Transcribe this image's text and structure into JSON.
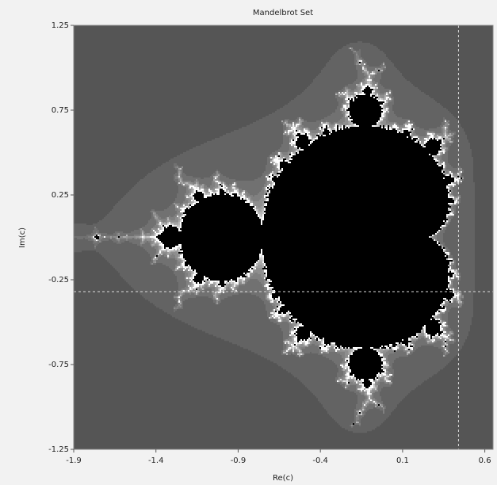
{
  "chart_data": {
    "type": "fractal",
    "title": "Mandelbrot Set",
    "x_label": "Re(c)",
    "y_label": "Im(c)",
    "xlim": [
      -1.9,
      0.65
    ],
    "ylim": [
      -1.25,
      1.25
    ],
    "xticks": [
      -1.9,
      -1.4,
      -0.9,
      -0.4,
      0.1,
      0.6
    ],
    "yticks": [
      1.25,
      0.75,
      0.25,
      -0.25,
      -0.75,
      -1.25
    ],
    "crosshair": {
      "x": 0.44,
      "y": -0.32
    },
    "background_color": "#555555",
    "set_color": "#000000",
    "crosshair_color": "#dddddd"
  }
}
